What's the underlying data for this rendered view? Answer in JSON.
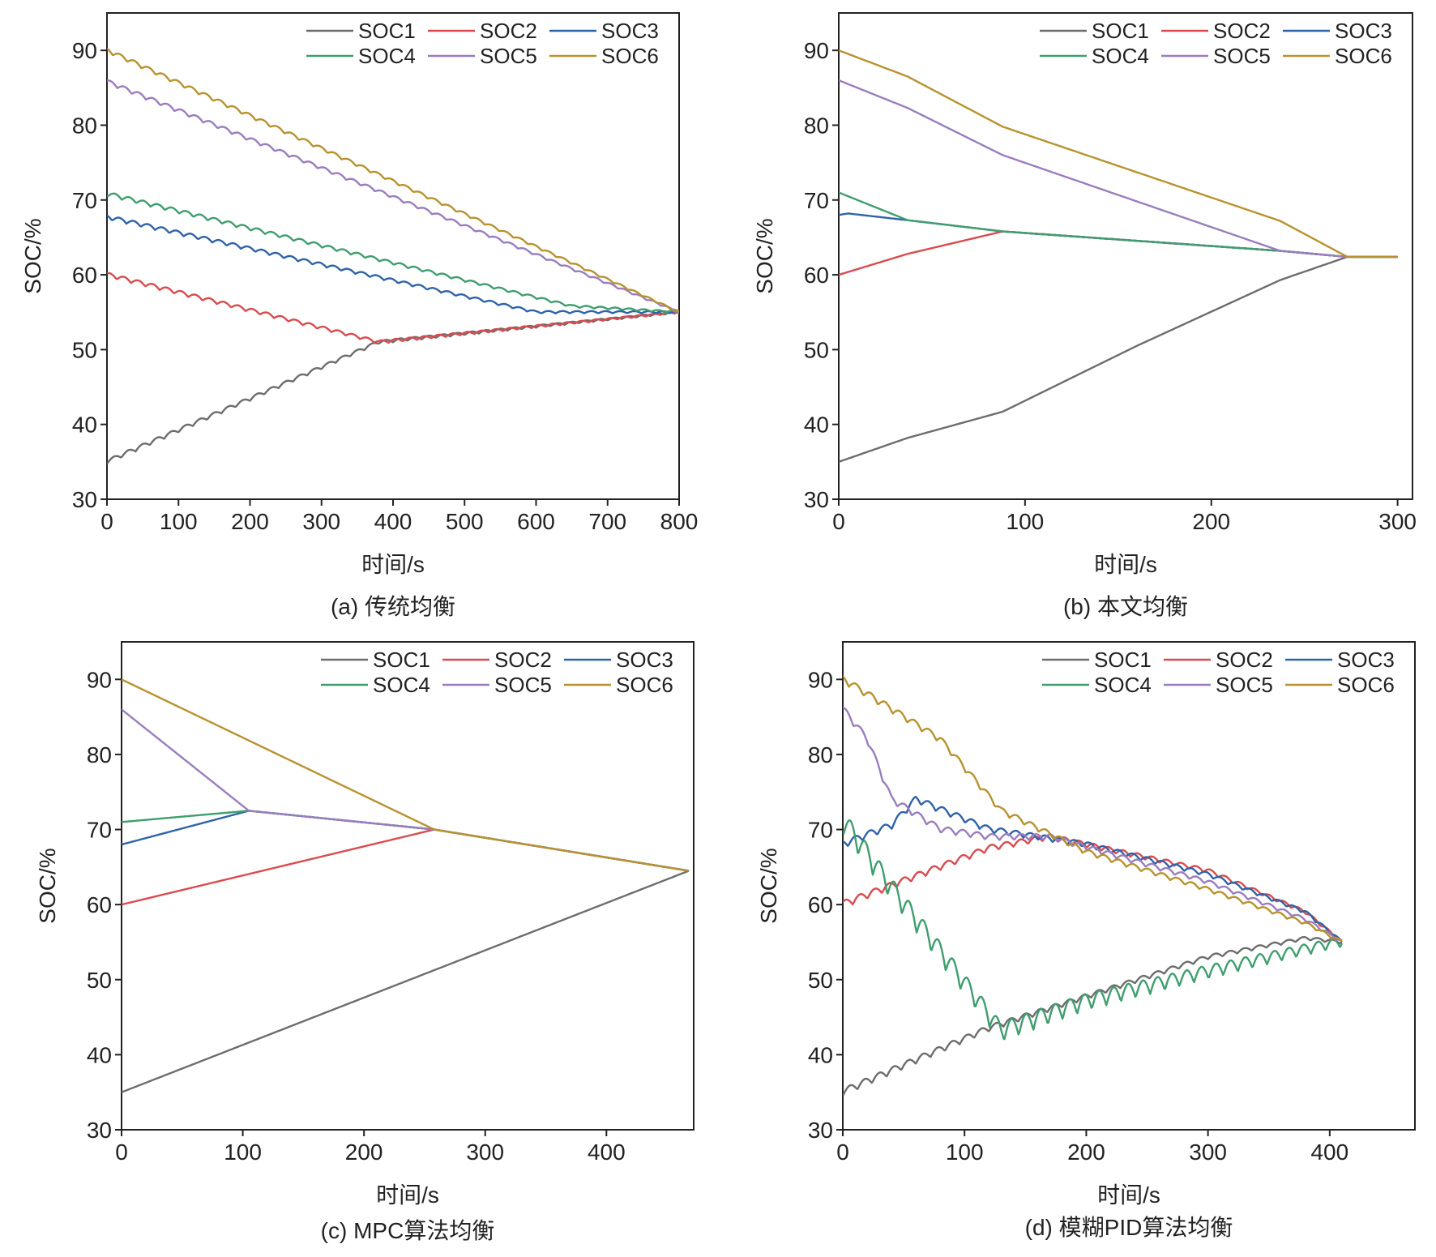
{
  "chart_data": [
    {
      "type": "line",
      "caption": "(a) 传统均衡",
      "xlabel": "时间/s",
      "ylabel": "SOC/%",
      "xlim": [
        0,
        800
      ],
      "ylim": [
        30,
        95
      ],
      "xticks": [
        0,
        100,
        200,
        300,
        400,
        500,
        600,
        700,
        800
      ],
      "yticks": [
        30,
        40,
        50,
        60,
        70,
        80,
        90
      ],
      "ripple": 0.6,
      "series": [
        {
          "name": "SOC1",
          "color": "#6d6d6d",
          "x": [
            0,
            380,
            800
          ],
          "y": [
            35,
            51,
            55
          ]
        },
        {
          "name": "SOC2",
          "color": "#d94b4f",
          "x": [
            0,
            380,
            800
          ],
          "y": [
            60,
            51,
            55
          ]
        },
        {
          "name": "SOC3",
          "color": "#2f63a8",
          "x": [
            0,
            600,
            800
          ],
          "y": [
            67.7,
            55,
            55
          ]
        },
        {
          "name": "SOC4",
          "color": "#3f9e6e",
          "x": [
            0,
            650,
            800
          ],
          "y": [
            70.8,
            55.8,
            55
          ]
        },
        {
          "name": "SOC5",
          "color": "#9a7dbe",
          "x": [
            0,
            800
          ],
          "y": [
            85.8,
            55
          ]
        },
        {
          "name": "SOC6",
          "color": "#b8922e",
          "x": [
            0,
            800
          ],
          "y": [
            90,
            55
          ]
        }
      ]
    },
    {
      "type": "line",
      "caption": "(b) 本文均衡",
      "xlabel": "时间/s",
      "ylabel": "SOC/%",
      "xlim": [
        0,
        308
      ],
      "ylim": [
        30,
        95
      ],
      "xticks": [
        0,
        100,
        200,
        300
      ],
      "yticks": [
        30,
        40,
        50,
        60,
        70,
        80,
        90
      ],
      "ripple": 0,
      "series": [
        {
          "name": "SOC1",
          "color": "#6d6d6d",
          "x": [
            0,
            37,
            88,
            160,
            237,
            273,
            300
          ],
          "y": [
            35,
            38.2,
            41.7,
            50.5,
            59.3,
            62.4,
            62.4
          ]
        },
        {
          "name": "SOC2",
          "color": "#d94b4f",
          "x": [
            0,
            37,
            88,
            237,
            273,
            300
          ],
          "y": [
            60,
            62.8,
            65.8,
            63.2,
            62.4,
            62.4
          ]
        },
        {
          "name": "SOC3",
          "color": "#2f63a8",
          "x": [
            0,
            5,
            37,
            88,
            237,
            273,
            300
          ],
          "y": [
            68,
            68.2,
            67.3,
            65.8,
            63.2,
            62.4,
            62.4
          ]
        },
        {
          "name": "SOC4",
          "color": "#3f9e6e",
          "x": [
            0,
            37,
            88,
            237,
            273,
            300
          ],
          "y": [
            71,
            67.3,
            65.8,
            63.2,
            62.4,
            62.4
          ]
        },
        {
          "name": "SOC5",
          "color": "#9a7dbe",
          "x": [
            0,
            37,
            88,
            237,
            273,
            300
          ],
          "y": [
            86,
            82.3,
            76,
            63.2,
            62.4,
            62.4
          ]
        },
        {
          "name": "SOC6",
          "color": "#b8922e",
          "x": [
            0,
            37,
            88,
            237,
            273,
            300
          ],
          "y": [
            90,
            86.5,
            79.8,
            67.2,
            62.4,
            62.4
          ]
        }
      ]
    },
    {
      "type": "line",
      "caption": "(c) MPC算法均衡",
      "xlabel": "时间/s",
      "ylabel": "SOC/%",
      "xlim": [
        0,
        472
      ],
      "ylim": [
        30,
        95
      ],
      "xticks": [
        0,
        100,
        200,
        300,
        400
      ],
      "yticks": [
        30,
        40,
        50,
        60,
        70,
        80,
        90
      ],
      "ripple": 0,
      "series": [
        {
          "name": "SOC1",
          "color": "#6d6d6d",
          "x": [
            0,
            468
          ],
          "y": [
            35,
            64.5
          ]
        },
        {
          "name": "SOC2",
          "color": "#d94b4f",
          "x": [
            0,
            258,
            468
          ],
          "y": [
            60,
            70,
            64.5
          ]
        },
        {
          "name": "SOC3",
          "color": "#2f63a8",
          "x": [
            0,
            105,
            258,
            468
          ],
          "y": [
            68,
            72.5,
            70,
            64.5
          ]
        },
        {
          "name": "SOC4",
          "color": "#3f9e6e",
          "x": [
            0,
            105,
            258,
            468
          ],
          "y": [
            71,
            72.5,
            70,
            64.5
          ]
        },
        {
          "name": "SOC5",
          "color": "#9a7dbe",
          "x": [
            0,
            105,
            258,
            468
          ],
          "y": [
            86,
            72.5,
            70,
            64.5
          ]
        },
        {
          "name": "SOC6",
          "color": "#b8922e",
          "x": [
            0,
            258,
            468
          ],
          "y": [
            90,
            70,
            64.5
          ]
        }
      ]
    },
    {
      "type": "line",
      "caption": "(d) 模糊PID算法均衡",
      "xlabel": "时间/s",
      "ylabel": "SOC/%",
      "xlim": [
        0,
        470
      ],
      "ylim": [
        30,
        95
      ],
      "xticks": [
        0,
        100,
        200,
        300,
        400
      ],
      "yticks": [
        30,
        40,
        50,
        60,
        70,
        80,
        90
      ],
      "ripple": 1.0,
      "series": [
        {
          "name": "SOC1",
          "color": "#6d6d6d",
          "x": [
            0,
            120,
            300,
            380,
            410
          ],
          "y": [
            35,
            43.5,
            53,
            55.5,
            55
          ]
        },
        {
          "name": "SOC2",
          "color": "#d94b4f",
          "x": [
            0,
            120,
            170,
            300,
            380,
            410
          ],
          "y": [
            60,
            67.5,
            69,
            64.5,
            59,
            55
          ]
        },
        {
          "name": "SOC3",
          "color": "#2f63a8",
          "x": [
            0,
            40,
            60,
            120,
            200,
            300,
            380,
            410
          ],
          "y": [
            68,
            70.5,
            74,
            70,
            68,
            64,
            59,
            55
          ]
        },
        {
          "name": "SOC4",
          "color": "#3f9e6e",
          "x": [
            0,
            40,
            130,
            200,
            300,
            380,
            410
          ],
          "y": [
            71,
            62,
            43,
            47,
            51,
            54,
            55
          ]
        },
        {
          "name": "SOC5",
          "color": "#9a7dbe",
          "x": [
            0,
            20,
            40,
            80,
            120,
            170,
            300,
            380,
            410
          ],
          "y": [
            86,
            82,
            74,
            70,
            69,
            69,
            63,
            58,
            55
          ]
        },
        {
          "name": "SOC6",
          "color": "#b8922e",
          "x": [
            0,
            80,
            130,
            200,
            300,
            380,
            410
          ],
          "y": [
            90,
            82,
            72.5,
            67,
            62,
            57.5,
            55
          ]
        }
      ]
    }
  ]
}
